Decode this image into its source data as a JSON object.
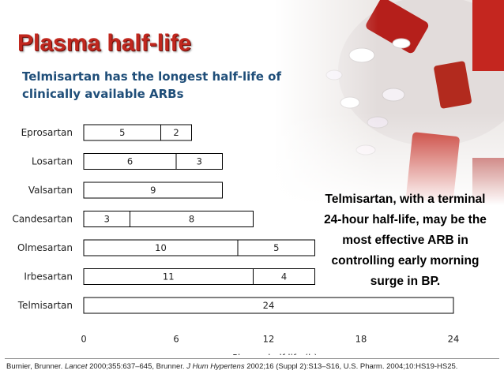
{
  "slide": {
    "title": "Plasma half-life",
    "subtitle": "Telmisartan has the longest half-life of clinically available ARBs",
    "callout": "Telmisartan, with a terminal 24-hour half-life, may be the most effective ARB in controlling early morning surge in BP.",
    "citation": {
      "part1": "Burnier, Brunner. ",
      "journal1": "Lancet",
      "part2": " 2000;355:637–645, Brunner. ",
      "journal2": "J Hum Hypertens",
      "part3": " 2002;16 (Suppl 2):S13–S16, U.S. Pharm. 2004;10:HS19-HS25."
    }
  },
  "chart_data": {
    "type": "bar",
    "orientation": "horizontal",
    "stacked": true,
    "categories": [
      "Eprosartan",
      "Losartan",
      "Valsartan",
      "Candesartan",
      "Olmesartan",
      "Irbesartan",
      "Telmisartan"
    ],
    "segments": [
      [
        5,
        2
      ],
      [
        6,
        3
      ],
      [
        9
      ],
      [
        3,
        8
      ],
      [
        10,
        5
      ],
      [
        11,
        4
      ],
      [
        24
      ]
    ],
    "xlabel": "Plasma half life (h)",
    "xlim": [
      0,
      24
    ],
    "xticks": [
      0,
      6,
      12,
      18,
      24
    ],
    "grid": false,
    "bar_fill": "#ffffff",
    "bar_stroke": "#000000"
  }
}
